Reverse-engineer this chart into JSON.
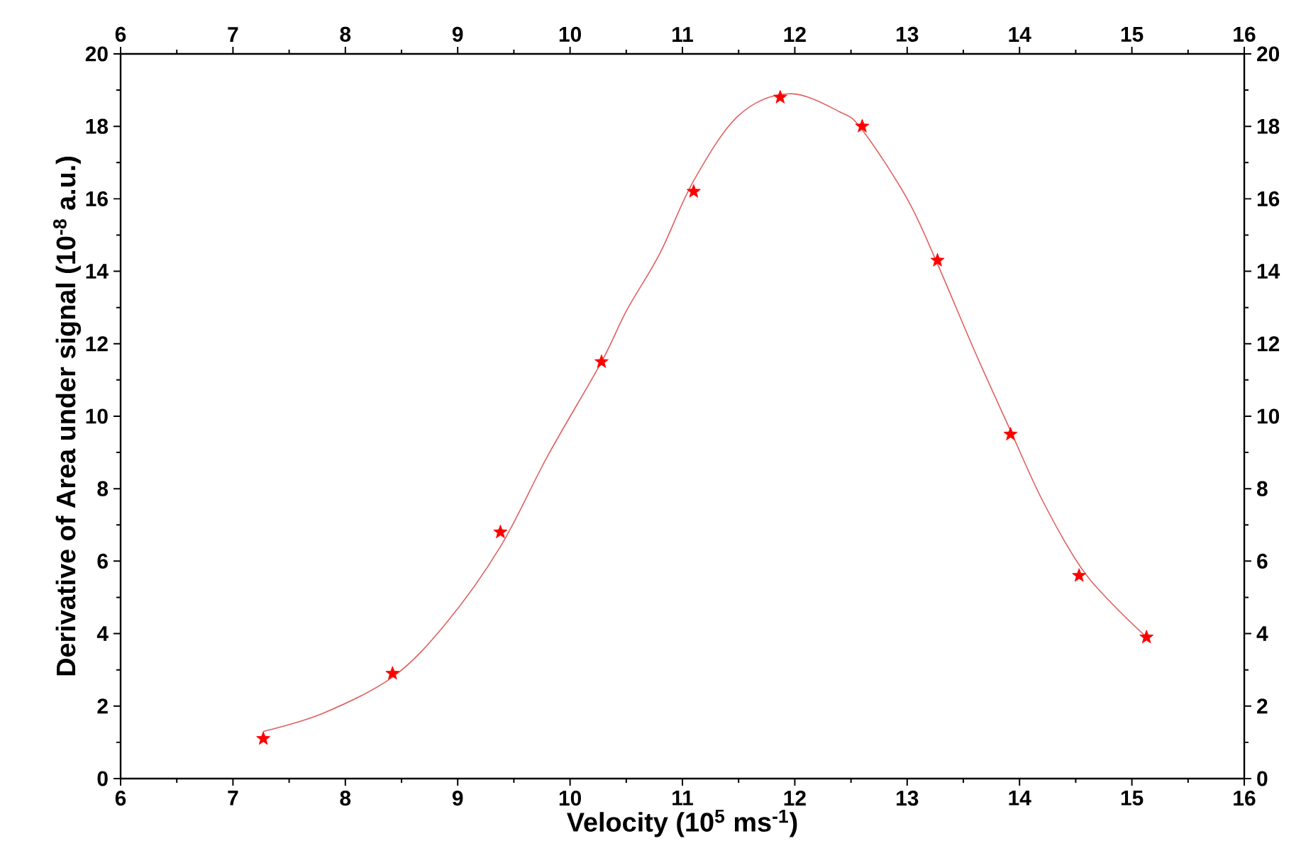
{
  "chart_data": {
    "type": "scatter",
    "xlabel": "Velocity (10$^{5}$ ms$^{-1}$)",
    "ylabel": "Derivative of Area under signal (10$^{-8}$ a.u.)",
    "xlim": [
      6,
      16
    ],
    "xticks": [
      6,
      7,
      8,
      9,
      10,
      11,
      12,
      13,
      14,
      15,
      16
    ],
    "ylim": [
      0,
      20
    ],
    "yticks": [
      0,
      2,
      4,
      6,
      8,
      10,
      12,
      14,
      16,
      18,
      20
    ],
    "x2lim": [
      6,
      16
    ],
    "x2ticks": [
      6,
      7,
      8,
      9,
      10,
      11,
      12,
      13,
      14,
      15,
      16
    ],
    "y2lim": [
      0,
      20
    ],
    "y2ticks": [
      0,
      2,
      4,
      6,
      8,
      10,
      12,
      14,
      16,
      18,
      20
    ],
    "series": [
      {
        "type": "line",
        "marker": "none",
        "color": "#e06060",
        "x": [
          7.27,
          7.8,
          8.42,
          8.9,
          9.38,
          9.8,
          10.28,
          10.5,
          10.8,
          11.1,
          11.5,
          11.95,
          12.4,
          12.6,
          13.0,
          13.27,
          13.6,
          13.92,
          14.2,
          14.53,
          14.8,
          15.13
        ],
        "values": [
          1.3,
          1.8,
          2.8,
          4.3,
          6.4,
          8.9,
          11.5,
          12.9,
          14.5,
          16.5,
          18.3,
          18.9,
          18.4,
          17.9,
          16.0,
          14.2,
          11.8,
          9.6,
          7.7,
          5.9,
          4.9,
          3.9
        ]
      },
      {
        "type": "scatter",
        "marker": "star",
        "color": "#ff0000",
        "x": [
          7.27,
          8.42,
          9.38,
          10.28,
          11.1,
          11.87,
          12.6,
          13.27,
          13.92,
          14.53,
          15.13
        ],
        "values": [
          1.1,
          2.9,
          6.8,
          11.5,
          16.2,
          18.8,
          18.0,
          14.3,
          9.5,
          5.6,
          3.9
        ]
      }
    ]
  }
}
